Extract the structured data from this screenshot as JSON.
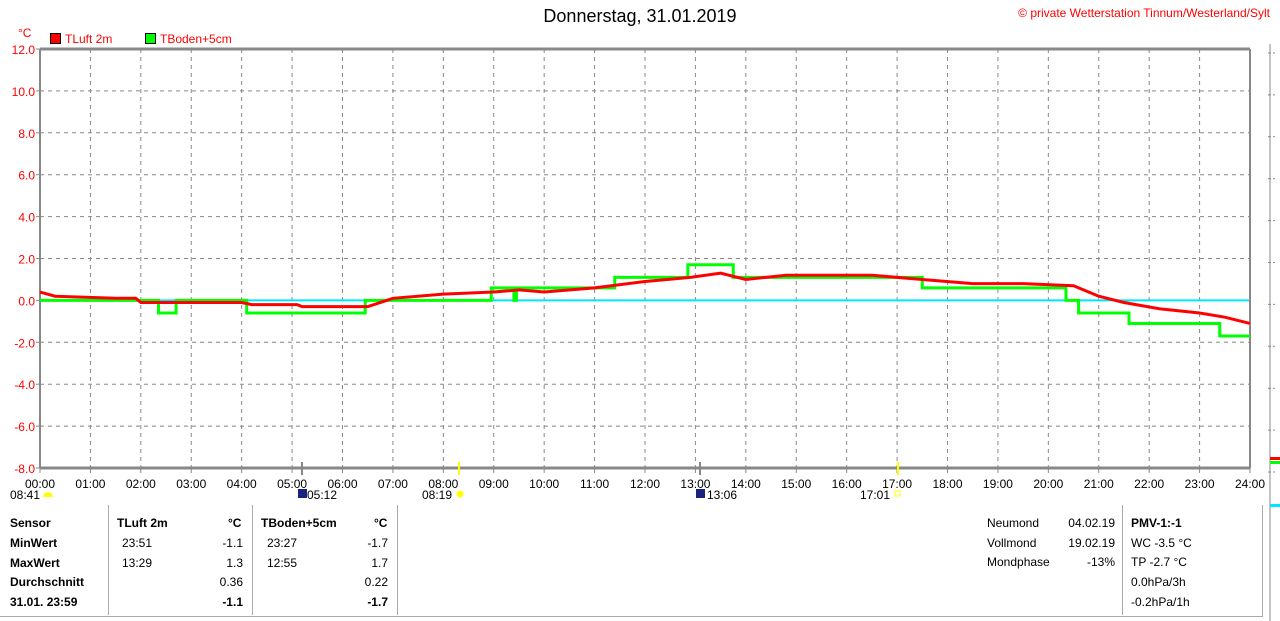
{
  "header": {
    "title": "Donnerstag, 31.01.2019",
    "copyright": "© private Wetterstation Tinnum/Westerland/Sylt"
  },
  "chart_data": {
    "type": "line",
    "title": "Donnerstag, 31.01.2019",
    "ylabel": "°C",
    "ylim": [
      -8,
      12
    ],
    "xlim": [
      0,
      24
    ],
    "grid": true,
    "legend_placement": "top-left",
    "yticks": [
      "12.0",
      "10.0",
      "8.0",
      "6.0",
      "4.0",
      "2.0",
      "0.0",
      "-2.0",
      "-4.0",
      "-6.0",
      "-8.0"
    ],
    "xticks": [
      "00:00",
      "01:00",
      "02:00",
      "03:00",
      "04:00",
      "05:00",
      "06:00",
      "07:00",
      "08:00",
      "09:00",
      "10:00",
      "11:00",
      "12:00",
      "13:00",
      "14:00",
      "15:00",
      "16:00",
      "17:00",
      "18:00",
      "19:00",
      "20:00",
      "21:00",
      "22:00",
      "23:00",
      "24:00"
    ],
    "reference_line": 0,
    "series": [
      {
        "name": "TLuft 2m",
        "color": "#ff0000",
        "step": false,
        "x": [
          0,
          0.3,
          1.5,
          1.9,
          2.0,
          4.0,
          4.2,
          5.1,
          5.2,
          6.5,
          7.0,
          8.0,
          9.0,
          9.5,
          10.0,
          11.0,
          12.0,
          12.9,
          13.5,
          14.0,
          14.8,
          16.5,
          17.5,
          18.5,
          19.5,
          20.5,
          21.0,
          21.5,
          22.2,
          23.0,
          23.5,
          24
        ],
        "y": [
          0.4,
          0.2,
          0.1,
          0.1,
          -0.1,
          -0.1,
          -0.2,
          -0.2,
          -0.3,
          -0.3,
          0.1,
          0.3,
          0.4,
          0.5,
          0.4,
          0.6,
          0.9,
          1.1,
          1.3,
          1.0,
          1.2,
          1.2,
          1.0,
          0.8,
          0.8,
          0.7,
          0.2,
          -0.1,
          -0.4,
          -0.6,
          -0.8,
          -1.1
        ]
      },
      {
        "name": "TBoden+5cm",
        "color": "#00ff00",
        "step": true,
        "x": [
          0,
          2.35,
          2.7,
          4.05,
          4.1,
          6.45,
          8.95,
          9.4,
          9.45,
          11.4,
          12.85,
          13.75,
          17.5,
          20.35,
          20.6,
          21.6,
          23.4,
          24
        ],
        "y": [
          0,
          -0.6,
          0,
          0,
          -0.6,
          0,
          0.6,
          0,
          0.6,
          1.1,
          1.7,
          1.1,
          0.6,
          0,
          -0.6,
          -1.1,
          -1.7,
          -1.7
        ]
      }
    ]
  },
  "astro": {
    "sunrise": "08:41",
    "moonrise": "05:12",
    "sun_marker": "08:19",
    "moonset": "13:06",
    "sunset": "17:01"
  },
  "stats": {
    "header": {
      "sensor": "Sensor",
      "s1": "TLuft 2m",
      "u1": "°C",
      "s2": "TBoden+5cm",
      "u2": "°C"
    },
    "rows": [
      {
        "label": "MinWert",
        "t1": "23:51",
        "v1": "-1.1",
        "t2": "23:27",
        "v2": "-1.7"
      },
      {
        "label": "MaxWert",
        "t1": "13:29",
        "v1": "1.3",
        "t2": "12:55",
        "v2": "1.7"
      },
      {
        "label": "Durchschnitt",
        "t1": "",
        "v1": "0.36",
        "t2": "",
        "v2": "0.22"
      },
      {
        "label": "31.01. 23:59",
        "t1": "",
        "v1": "-1.1",
        "t2": "",
        "v2": "-1.7"
      }
    ]
  },
  "moon": [
    {
      "label": "Neumond",
      "value": "04.02.19"
    },
    {
      "label": "Vollmond",
      "value": "19.02.19"
    },
    {
      "label": "Mondphase",
      "value": "-13%"
    }
  ],
  "extra": {
    "pmv": "PMV-1:-1",
    "wc": "WC -3.5 °C",
    "tp": "TP -2.7 °C",
    "p3": "0.0hPa/3h",
    "p1": "-0.2hPa/1h"
  }
}
